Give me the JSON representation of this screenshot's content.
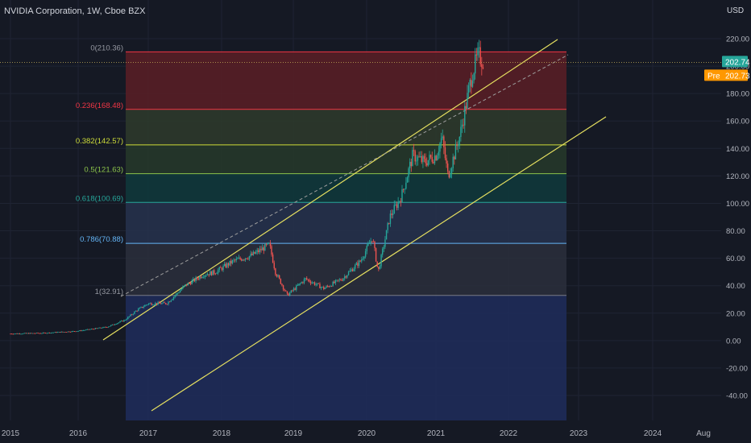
{
  "header": {
    "title": "NVIDIA Corporation, 1W, Cboe BZX",
    "currency": "USD"
  },
  "price_tags": {
    "last": {
      "value": "202.74",
      "color": "#26a69a"
    },
    "pre": {
      "label": "Pre",
      "value": "202.73",
      "color": "#ff9800"
    }
  },
  "chart_data": {
    "type": "candlestick",
    "title": "NVIDIA Corporation, 1W, Cboe BZX",
    "ylabel": "USD",
    "ylim": [
      -50,
      230
    ],
    "y_ticks": [
      "220.00",
      "200.00",
      "180.00",
      "160.00",
      "140.00",
      "120.00",
      "100.00",
      "80.00",
      "60.00",
      "40.00",
      "20.00",
      "0.00",
      "-20.00",
      "-40.00"
    ],
    "x_ticks": [
      "2015",
      "2016",
      "2017",
      "2018",
      "2019",
      "2020",
      "2021",
      "2022",
      "2023",
      "2024",
      "Aug"
    ],
    "price_path": [
      {
        "date": "2015-01",
        "close": 5.0
      },
      {
        "date": "2015-07",
        "close": 5.5
      },
      {
        "date": "2016-01",
        "close": 7.0
      },
      {
        "date": "2016-06",
        "close": 10.0
      },
      {
        "date": "2016-09",
        "close": 15.0
      },
      {
        "date": "2016-11",
        "close": 22.0
      },
      {
        "date": "2017-01",
        "close": 27.0
      },
      {
        "date": "2017-04",
        "close": 27.0
      },
      {
        "date": "2017-07",
        "close": 40.0
      },
      {
        "date": "2017-10",
        "close": 48.0
      },
      {
        "date": "2017-12",
        "close": 50.0
      },
      {
        "date": "2018-03",
        "close": 58.0
      },
      {
        "date": "2018-06",
        "close": 62.0
      },
      {
        "date": "2018-09",
        "close": 70.0
      },
      {
        "date": "2018-10",
        "close": 50.0
      },
      {
        "date": "2018-12",
        "close": 33.0
      },
      {
        "date": "2019-03",
        "close": 45.0
      },
      {
        "date": "2019-06",
        "close": 38.0
      },
      {
        "date": "2019-09",
        "close": 45.0
      },
      {
        "date": "2019-12",
        "close": 58.0
      },
      {
        "date": "2020-02",
        "close": 75.0
      },
      {
        "date": "2020-03",
        "close": 50.0
      },
      {
        "date": "2020-05",
        "close": 90.0
      },
      {
        "date": "2020-07",
        "close": 105.0
      },
      {
        "date": "2020-09",
        "close": 135.0
      },
      {
        "date": "2020-11",
        "close": 130.0
      },
      {
        "date": "2021-01",
        "close": 135.0
      },
      {
        "date": "2021-02",
        "close": 148.0
      },
      {
        "date": "2021-03",
        "close": 120.0
      },
      {
        "date": "2021-05",
        "close": 150.0
      },
      {
        "date": "2021-07",
        "close": 195.0
      },
      {
        "date": "2021-08",
        "close": 208.0
      },
      {
        "date": "2021-09",
        "close": 202.74
      }
    ],
    "fibonacci": [
      {
        "label": "0(210.36)",
        "value": 210.36,
        "line": "#f23645",
        "fill": "#5b1f26",
        "text": "#9598a1"
      },
      {
        "label": "0.236(168.48)",
        "value": 168.48,
        "line": "#f23645",
        "fill": "#2e3b2b",
        "text": "#f23645"
      },
      {
        "label": "0.382(142.57)",
        "value": 142.57,
        "line": "#cddc39",
        "fill": "#26392a",
        "text": "#cddc39"
      },
      {
        "label": "0.5(121.63)",
        "value": 121.63,
        "line": "#8bc34a",
        "fill": "#0f3a3c",
        "text": "#8bc34a"
      },
      {
        "label": "0.618(100.69)",
        "value": 100.69,
        "line": "#26a69a",
        "fill": "#26324d",
        "text": "#26a69a"
      },
      {
        "label": "0.786(70.88)",
        "value": 70.88,
        "line": "#64b5f6",
        "fill": "#2a2f3c",
        "text": "#64b5f6"
      },
      {
        "label": "1(32.91)",
        "value": 32.91,
        "line": "#787b86",
        "fill": "#1f2d5c",
        "text": "#9598a1"
      }
    ],
    "colors": {
      "up": "#26a69a",
      "down": "#ef5350",
      "channel": "#e6e060",
      "background": "#151924"
    }
  }
}
